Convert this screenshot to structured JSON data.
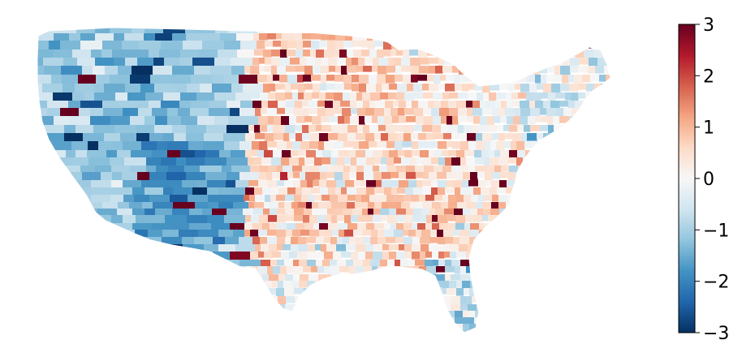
{
  "colorbar": {
    "ticks": [
      {
        "value": 3,
        "label": "3"
      },
      {
        "value": 2,
        "label": "2"
      },
      {
        "value": 1,
        "label": "1"
      },
      {
        "value": 0,
        "label": "0"
      },
      {
        "value": -1,
        "label": "−1"
      },
      {
        "value": -2,
        "label": "−2"
      },
      {
        "value": -3,
        "label": "−3"
      }
    ],
    "range": [
      -3,
      3
    ],
    "colormap": "RdBu_r",
    "stops": [
      "#053061",
      "#2166ac",
      "#4393c3",
      "#92c5de",
      "#d1e5f0",
      "#f7f7f7",
      "#fddbc7",
      "#f4a582",
      "#d6604d",
      "#b2182b",
      "#67001f"
    ]
  },
  "map": {
    "region": "contiguous United States",
    "unit": "county",
    "pattern": "West mostly negative (blue); Great Plains, Midwest and South mostly positive (red); Northeast near zero"
  }
}
